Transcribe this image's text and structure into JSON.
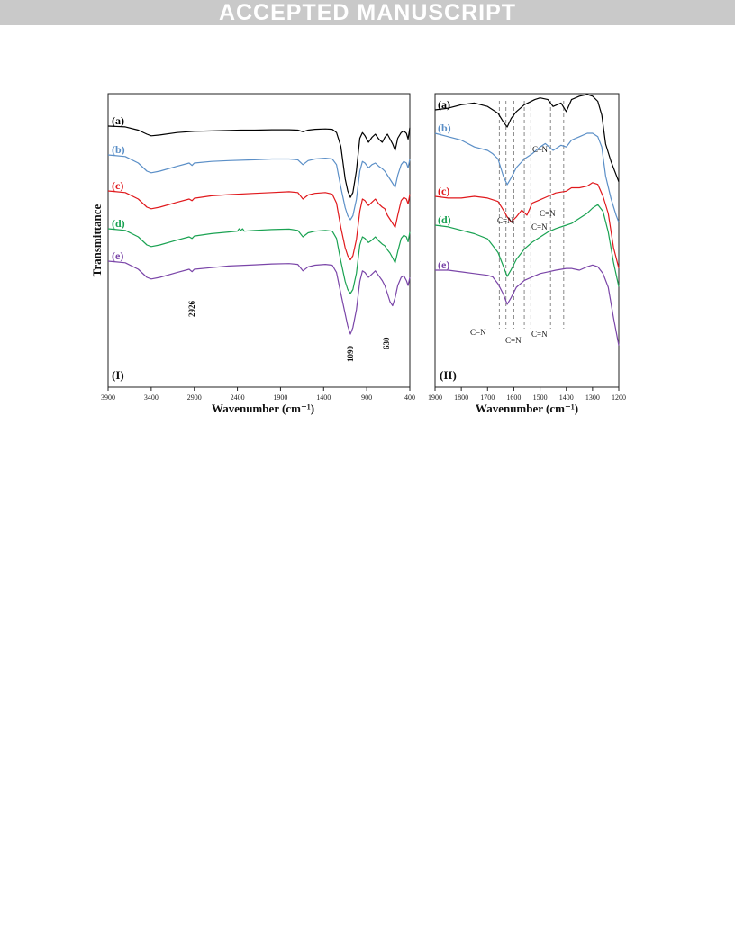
{
  "banner": {
    "text": "ACCEPTED MANUSCRIPT"
  },
  "chart_data": [
    {
      "type": "line",
      "panel_label": "(I)",
      "xlabel": "Wavenumber (cm⁻¹)",
      "ylabel": "Transmittance",
      "xlim": [
        3900,
        400
      ],
      "x_reversed": true,
      "xticks": [
        3900,
        3400,
        2900,
        2400,
        1900,
        1400,
        900,
        400
      ],
      "yticks_shown": false,
      "grid": false,
      "colors": {
        "a": "#000000",
        "b": "#5b8fc7",
        "c": "#e0181c",
        "d": "#1aa252",
        "e": "#7a45a8"
      },
      "series": [
        {
          "name": "(a)",
          "x": [
            3900,
            3700,
            3550,
            3450,
            3400,
            3300,
            3100,
            2900,
            2700,
            2500,
            2360,
            2200,
            2000,
            1800,
            1700,
            1640,
            1580,
            1500,
            1380,
            1300,
            1250,
            1200,
            1150,
            1120,
            1090,
            1060,
            1020,
            980,
            950,
            920,
            880,
            840,
            800,
            760,
            720,
            690,
            660,
            630,
            600,
            570,
            540,
            500,
            470,
            440,
            420,
            400
          ],
          "y": [
            100,
            99,
            95,
            90,
            88,
            89,
            92,
            93.5,
            94,
            94.5,
            95,
            95,
            95.5,
            95.5,
            95,
            93,
            95,
            96,
            96.5,
            96,
            92,
            75,
            35,
            20,
            12,
            18,
            45,
            85,
            92,
            88,
            80,
            86,
            90,
            84,
            80,
            86,
            90,
            84,
            78,
            70,
            85,
            92,
            94,
            91,
            84,
            98
          ]
        },
        {
          "name": "(b)",
          "x": [
            3900,
            3700,
            3550,
            3450,
            3400,
            3300,
            3100,
            2960,
            2926,
            2900,
            2700,
            2500,
            2200,
            2000,
            1800,
            1700,
            1640,
            1580,
            1500,
            1380,
            1300,
            1250,
            1200,
            1150,
            1120,
            1090,
            1060,
            1020,
            980,
            950,
            920,
            880,
            840,
            800,
            760,
            720,
            690,
            660,
            630,
            600,
            570,
            540,
            500,
            470,
            440,
            420,
            400
          ],
          "y": [
            100,
            98,
            90,
            80,
            78,
            80,
            86,
            90,
            87,
            90,
            92,
            93,
            94,
            95,
            95,
            94,
            88,
            93,
            95,
            96,
            95,
            88,
            60,
            35,
            25,
            20,
            25,
            45,
            80,
            92,
            90,
            84,
            88,
            90,
            86,
            83,
            80,
            75,
            70,
            65,
            60,
            75,
            88,
            92,
            90,
            84,
            95
          ]
        },
        {
          "name": "(c)",
          "x": [
            3900,
            3700,
            3550,
            3450,
            3400,
            3300,
            3100,
            2960,
            2926,
            2900,
            2700,
            2500,
            2200,
            2000,
            1800,
            1700,
            1640,
            1580,
            1500,
            1380,
            1300,
            1250,
            1200,
            1150,
            1120,
            1090,
            1060,
            1020,
            980,
            950,
            920,
            880,
            840,
            800,
            760,
            720,
            690,
            660,
            630,
            600,
            570,
            540,
            500,
            470,
            440,
            420,
            400
          ],
          "y": [
            100,
            98,
            90,
            80,
            78,
            80,
            86,
            90,
            88,
            91,
            94,
            95.5,
            97,
            98,
            99,
            98,
            90,
            95,
            97,
            98,
            96,
            85,
            55,
            30,
            20,
            15,
            20,
            40,
            75,
            90,
            88,
            82,
            86,
            90,
            84,
            80,
            78,
            70,
            65,
            60,
            55,
            70,
            88,
            92,
            90,
            84,
            96
          ]
        },
        {
          "name": "(d)",
          "x": [
            3900,
            3700,
            3550,
            3450,
            3400,
            3300,
            3100,
            2960,
            2926,
            2900,
            2700,
            2500,
            2400,
            2380,
            2360,
            2340,
            2320,
            2200,
            2000,
            1800,
            1700,
            1640,
            1580,
            1500,
            1380,
            1300,
            1250,
            1200,
            1150,
            1120,
            1090,
            1060,
            1020,
            980,
            950,
            920,
            880,
            840,
            800,
            760,
            720,
            690,
            660,
            630,
            600,
            570,
            540,
            500,
            470,
            440,
            420,
            400
          ],
          "y": [
            100,
            98,
            90,
            80,
            78,
            80,
            86,
            90,
            88,
            91,
            94,
            96,
            97,
            100,
            98,
            100,
            97,
            98,
            99,
            99.5,
            98,
            90,
            95,
            97,
            98,
            97,
            88,
            60,
            35,
            25,
            20,
            25,
            45,
            80,
            90,
            88,
            83,
            86,
            90,
            85,
            81,
            79,
            74,
            70,
            64,
            58,
            72,
            88,
            92,
            90,
            84,
            96
          ]
        },
        {
          "name": "(e)",
          "x": [
            3900,
            3700,
            3550,
            3450,
            3400,
            3300,
            3100,
            2960,
            2926,
            2900,
            2700,
            2500,
            2200,
            2000,
            1800,
            1700,
            1640,
            1580,
            1500,
            1380,
            1300,
            1250,
            1200,
            1150,
            1120,
            1090,
            1060,
            1020,
            980,
            950,
            920,
            880,
            840,
            800,
            760,
            720,
            690,
            660,
            630,
            600,
            570,
            540,
            500,
            470,
            440,
            420,
            400
          ],
          "y": [
            100,
            98,
            90,
            80,
            78,
            80,
            86,
            90,
            87,
            90,
            92,
            94,
            95.5,
            96.5,
            97,
            96,
            88,
            93,
            95,
            96,
            95,
            86,
            60,
            35,
            20,
            10,
            18,
            40,
            75,
            88,
            86,
            80,
            84,
            88,
            82,
            76,
            70,
            60,
            50,
            45,
            55,
            70,
            80,
            82,
            76,
            70,
            80
          ]
        }
      ],
      "annotations": [
        {
          "x": 2926,
          "text": "2926"
        },
        {
          "x": 1090,
          "text": "1090"
        },
        {
          "x": 630,
          "text": "630"
        }
      ]
    },
    {
      "type": "line",
      "panel_label": "(II)",
      "xlabel": "Wavenumber (cm⁻¹)",
      "ylabel": "",
      "xlim": [
        1900,
        1200
      ],
      "x_reversed": true,
      "xticks": [
        1900,
        1800,
        1700,
        1600,
        1500,
        1400,
        1300,
        1200
      ],
      "yticks_shown": false,
      "grid": false,
      "series": [
        {
          "name": "(a)",
          "x": [
            1900,
            1850,
            1800,
            1750,
            1700,
            1660,
            1640,
            1625,
            1610,
            1590,
            1560,
            1520,
            1500,
            1470,
            1450,
            1420,
            1400,
            1380,
            1350,
            1320,
            1300,
            1280,
            1265,
            1250,
            1230,
            1210,
            1200
          ],
          "y": [
            100,
            101,
            103,
            104,
            102,
            98,
            93,
            90,
            95,
            99,
            103,
            106,
            107,
            106,
            102,
            104,
            99,
            106,
            108,
            109,
            108,
            105,
            97,
            80,
            70,
            62,
            58
          ]
        },
        {
          "name": "(b)",
          "x": [
            1900,
            1850,
            1800,
            1750,
            1700,
            1680,
            1660,
            1640,
            1625,
            1610,
            1590,
            1560,
            1530,
            1500,
            1480,
            1450,
            1420,
            1400,
            1380,
            1350,
            1320,
            1300,
            1280,
            1265,
            1250,
            1230,
            1210,
            1200
          ],
          "y": [
            100,
            98,
            96,
            92,
            90,
            88,
            85,
            75,
            70,
            74,
            80,
            85,
            88,
            92,
            94,
            90,
            93,
            92,
            96,
            98,
            100,
            100,
            98,
            92,
            75,
            62,
            52,
            48
          ]
        },
        {
          "name": "(c)",
          "x": [
            1900,
            1850,
            1800,
            1750,
            1700,
            1660,
            1640,
            1625,
            1610,
            1590,
            1570,
            1550,
            1530,
            1500,
            1470,
            1440,
            1400,
            1380,
            1350,
            1320,
            1300,
            1280,
            1260,
            1240,
            1220,
            1200
          ],
          "y": [
            100,
            99,
            99,
            100,
            99,
            97,
            92,
            88,
            85,
            88,
            92,
            89,
            96,
            98,
            100,
            102,
            103,
            105,
            105,
            106,
            108,
            107,
            100,
            90,
            70,
            58
          ]
        },
        {
          "name": "(d)",
          "x": [
            1900,
            1850,
            1800,
            1750,
            1700,
            1680,
            1660,
            1640,
            1625,
            1610,
            1590,
            1560,
            1530,
            1500,
            1470,
            1440,
            1400,
            1380,
            1350,
            1320,
            1300,
            1280,
            1260,
            1240,
            1220,
            1200
          ],
          "y": [
            100,
            99,
            97,
            95,
            92,
            88,
            84,
            76,
            70,
            74,
            80,
            86,
            90,
            93,
            96,
            98,
            100,
            101,
            104,
            107,
            110,
            112,
            108,
            96,
            78,
            64
          ]
        },
        {
          "name": "(e)",
          "x": [
            1900,
            1850,
            1800,
            1750,
            1700,
            1680,
            1660,
            1640,
            1625,
            1610,
            1590,
            1560,
            1530,
            1500,
            1470,
            1440,
            1400,
            1380,
            1350,
            1320,
            1300,
            1280,
            1260,
            1240,
            1220,
            1200
          ],
          "y": [
            100,
            100,
            99,
            98,
            97,
            96,
            92,
            86,
            80,
            84,
            90,
            94,
            96,
            98,
            99,
            100,
            101,
            101,
            100,
            102,
            103,
            102,
            98,
            90,
            72,
            56
          ]
        }
      ],
      "annotations": [
        {
          "text": "C–N",
          "x": 1460,
          "series": "(b)"
        },
        {
          "text": "C=N",
          "x": 1545,
          "series": "(c)"
        },
        {
          "text": "C=N",
          "x": 1605,
          "series": "(d)"
        },
        {
          "text": "C=N",
          "x": 1520,
          "series": "(d)"
        },
        {
          "text": "C=N",
          "x": 1680,
          "series": "(e)"
        },
        {
          "text": "C=N",
          "x": 1620,
          "series": "(e)"
        },
        {
          "text": "C=N",
          "x": 1525,
          "series": "(e)"
        }
      ],
      "dashed_lines_x": [
        1655,
        1630,
        1600,
        1560,
        1535,
        1460,
        1410
      ]
    }
  ]
}
